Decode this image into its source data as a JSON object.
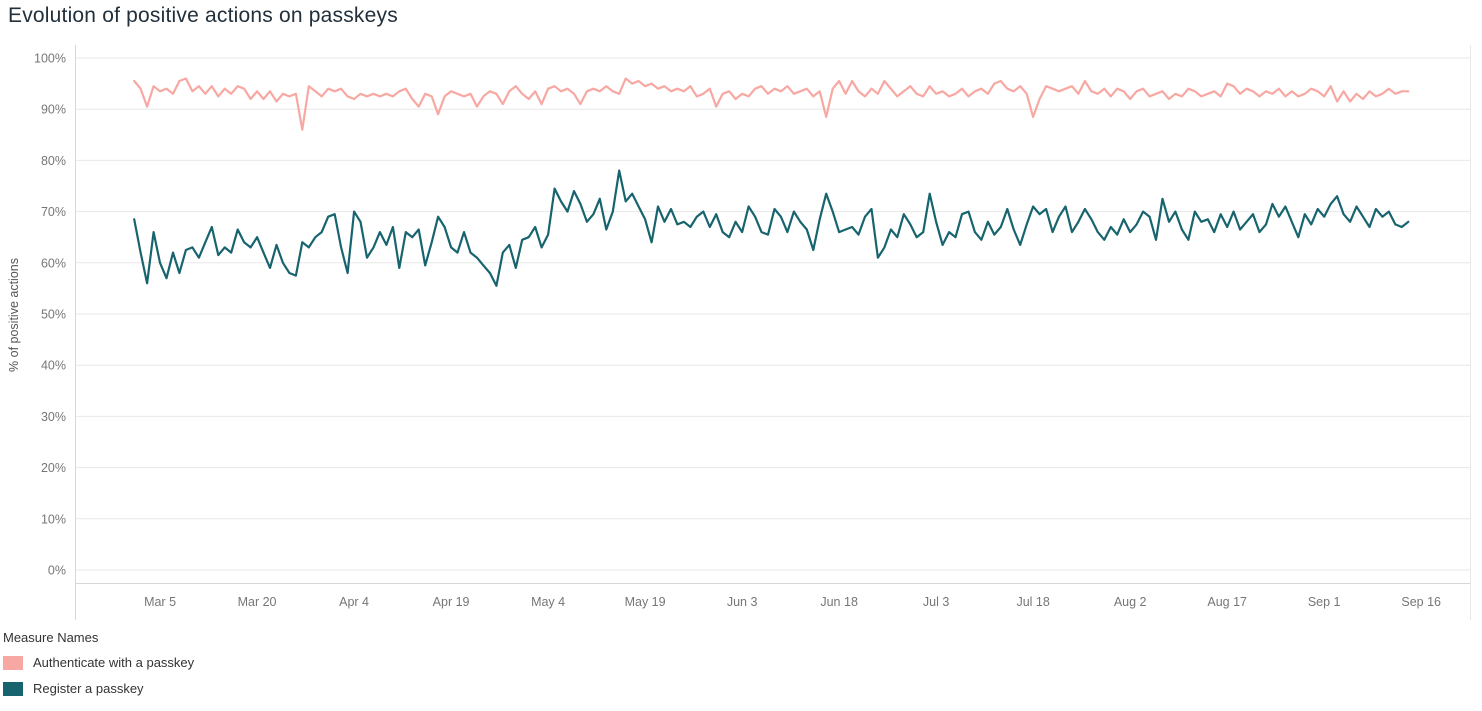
{
  "chart_data": {
    "type": "line",
    "title": "Evolution of positive actions on passkeys",
    "xlabel": "",
    "ylabel": "% of positive actions",
    "ylim": [
      0,
      100
    ],
    "y_ticks": [
      0,
      10,
      20,
      30,
      40,
      50,
      60,
      70,
      80,
      90,
      100
    ],
    "y_tick_suffix": "%",
    "grid": true,
    "legend_title": "Measure Names",
    "legend_position": "bottom-left",
    "x_start_date": "Mar 1",
    "x_end_date": "Sep 14",
    "x_index_range": [
      -9.15,
      205
    ],
    "x_ticks": [
      {
        "label": "Mar 5",
        "index": 4
      },
      {
        "label": "Mar 20",
        "index": 19
      },
      {
        "label": "Apr 4",
        "index": 34
      },
      {
        "label": "Apr 19",
        "index": 49
      },
      {
        "label": "May 4",
        "index": 64
      },
      {
        "label": "May 19",
        "index": 79
      },
      {
        "label": "Jun 3",
        "index": 94
      },
      {
        "label": "Jun 18",
        "index": 109
      },
      {
        "label": "Jul 3",
        "index": 124
      },
      {
        "label": "Jul 18",
        "index": 139
      },
      {
        "label": "Aug 2",
        "index": 154
      },
      {
        "label": "Aug 17",
        "index": 169
      },
      {
        "label": "Sep 1",
        "index": 184
      },
      {
        "label": "Sep 16",
        "index": 199
      }
    ],
    "series": [
      {
        "name": "Authenticate with a passkey",
        "color": "#F8A8A2",
        "values": [
          95.5,
          94,
          90.5,
          94.5,
          93.5,
          94,
          93,
          95.5,
          96,
          93.5,
          94.5,
          93,
          94.5,
          92.5,
          94,
          93,
          94.5,
          94,
          92,
          93.5,
          92,
          93.5,
          91.5,
          93,
          92.5,
          93,
          86,
          94.5,
          93.5,
          92.5,
          94,
          93.5,
          94,
          92.5,
          92,
          93,
          92.5,
          93,
          92.5,
          93,
          92.5,
          93.5,
          94,
          92,
          90.5,
          93,
          92.5,
          89,
          92.5,
          93.5,
          93,
          92.5,
          93,
          90.5,
          92.5,
          93.5,
          93,
          91,
          93.5,
          94.5,
          93,
          92,
          93.5,
          91,
          94,
          94.5,
          93.5,
          94,
          93,
          91,
          93.5,
          94,
          93.5,
          94.5,
          93.5,
          93,
          96,
          95,
          95.5,
          94.5,
          95,
          94,
          94.5,
          93.5,
          94,
          93.5,
          94.5,
          92.5,
          93,
          94,
          90.5,
          93,
          93.5,
          92,
          93,
          92.5,
          94,
          94.5,
          93,
          94,
          93.5,
          94.5,
          93,
          93.5,
          94,
          92.5,
          93.5,
          88.5,
          94,
          95.5,
          93,
          95.5,
          93.5,
          92.5,
          94,
          93,
          95.5,
          94,
          92.5,
          93.5,
          94.5,
          93,
          92.5,
          94.5,
          93,
          93.5,
          92.5,
          93,
          94,
          92.5,
          93.5,
          94,
          93,
          95,
          95.5,
          94,
          93.5,
          94.5,
          93,
          88.5,
          92,
          94.5,
          94,
          93.5,
          94,
          94.5,
          93,
          95.5,
          93.5,
          93,
          94,
          92.5,
          94,
          93.5,
          92,
          93.5,
          94,
          92.5,
          93,
          93.5,
          92,
          93,
          92.5,
          94,
          93.5,
          92.5,
          93,
          93.5,
          92.5,
          95,
          94.5,
          93,
          94,
          93.5,
          92.5,
          93.5,
          93,
          94,
          92.5,
          93.5,
          92.5,
          93,
          94,
          93.5,
          92.5,
          94.5,
          91.5,
          93.5,
          91.5,
          93,
          92,
          93.5,
          92.5,
          93,
          94,
          93,
          93.5,
          93.5
        ]
      },
      {
        "name": "Register a passkey",
        "color": "#17646F",
        "values": [
          68.5,
          62,
          56,
          66,
          60,
          57,
          62,
          58,
          62.5,
          63,
          61,
          64,
          67,
          61.5,
          63,
          62,
          66.5,
          64,
          63,
          65,
          62,
          59,
          63.5,
          60,
          58,
          57.5,
          64,
          63,
          65,
          66,
          69,
          69.5,
          63,
          58,
          70,
          68,
          61,
          63,
          66,
          63.5,
          67,
          59,
          66,
          65,
          66.5,
          59.5,
          64,
          69,
          67,
          63,
          62,
          66,
          62,
          61,
          59.5,
          58,
          55.5,
          62,
          63.5,
          59,
          64.5,
          65,
          67,
          63,
          65.5,
          74.5,
          72,
          70,
          74,
          71.5,
          68,
          69.5,
          72.5,
          66.5,
          70,
          78,
          72,
          73.5,
          71,
          68.5,
          64,
          71,
          68,
          70.5,
          67.5,
          68,
          67,
          69,
          70,
          67,
          69.5,
          66,
          65,
          68,
          66,
          71,
          69,
          66,
          65.5,
          70.5,
          69,
          66,
          70,
          68,
          66.5,
          62.5,
          68.5,
          73.5,
          70,
          66,
          66.5,
          67,
          65.5,
          69,
          70.5,
          61,
          63,
          66.5,
          65,
          69.5,
          67.5,
          65,
          66,
          73.5,
          68,
          63.5,
          66,
          65,
          69.5,
          70,
          66,
          64.5,
          68,
          65.5,
          67,
          70.5,
          66.5,
          63.5,
          67.5,
          71,
          69.5,
          70.5,
          66,
          69,
          71,
          66,
          68,
          70.5,
          68.5,
          66,
          64.5,
          67,
          65.5,
          68.5,
          66,
          67.5,
          70,
          69,
          64.5,
          72.5,
          68,
          70,
          66.5,
          64.5,
          70,
          68,
          68.5,
          66,
          69.5,
          67,
          70,
          66.5,
          68,
          69.5,
          66,
          67.5,
          71.5,
          69,
          71,
          68,
          65,
          69.5,
          67.5,
          70.5,
          69,
          71.5,
          73,
          69.5,
          68,
          71,
          69,
          67,
          70.5,
          69,
          70,
          67.5,
          67,
          68
        ]
      }
    ],
    "colors": {
      "grid": "#E8E8E8",
      "axis_line": "#D7D7D7",
      "tick_label": "#767676",
      "title_text": "#22303C"
    }
  }
}
